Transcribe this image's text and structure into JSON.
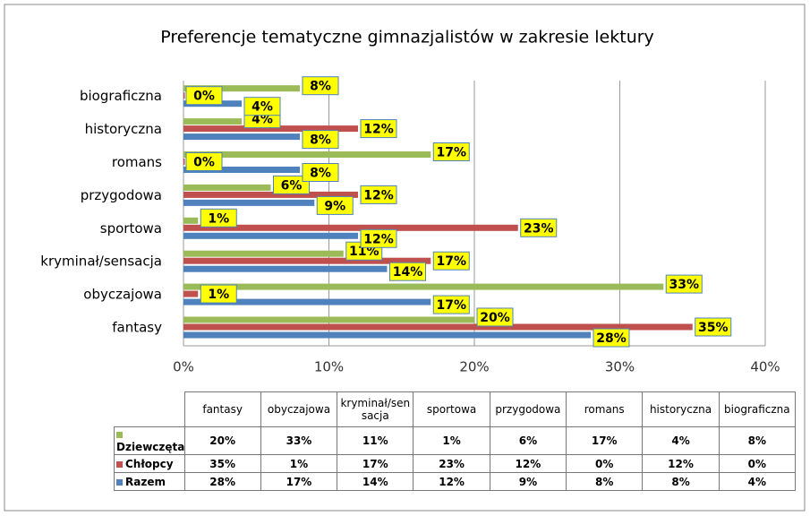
{
  "chart_data": {
    "type": "bar",
    "orientation": "horizontal",
    "title": "Preferencje  tematyczne gimnazjalistów w zakresie lektury",
    "categories": [
      "fantasy",
      "obyczajowa",
      "kryminał/sensacja",
      "sportowa",
      "przygodowa",
      "romans",
      "historyczna",
      "biograficzna"
    ],
    "series": [
      {
        "name": "Dziewczęta",
        "color": "#9bbb59",
        "values": [
          20,
          33,
          11,
          1,
          6,
          17,
          4,
          8
        ],
        "value_labels": [
          "20%",
          "33%",
          "11%",
          "1%",
          "6%",
          "17%",
          "4%",
          "8%"
        ]
      },
      {
        "name": "Chłopcy",
        "color": "#c0504d",
        "values": [
          35,
          1,
          17,
          23,
          12,
          0,
          12,
          0
        ],
        "value_labels": [
          "35%",
          "1%",
          "17%",
          "23%",
          "12%",
          "0%",
          "12%",
          "0%"
        ]
      },
      {
        "name": "Razem",
        "color": "#4f81bd",
        "values": [
          28,
          17,
          14,
          12,
          9,
          8,
          8,
          4
        ],
        "value_labels": [
          "28%",
          "17%",
          "14%",
          "12%",
          "9%",
          "8%",
          "8%",
          "4%"
        ]
      }
    ],
    "xlim": [
      0,
      40
    ],
    "xticks": [
      {
        "value": 0,
        "label": "0%"
      },
      {
        "value": 10,
        "label": "10%"
      },
      {
        "value": 20,
        "label": "20%"
      },
      {
        "value": 30,
        "label": "30%"
      },
      {
        "value": 40,
        "label": "40%"
      }
    ],
    "grid": true,
    "data_table": true
  }
}
